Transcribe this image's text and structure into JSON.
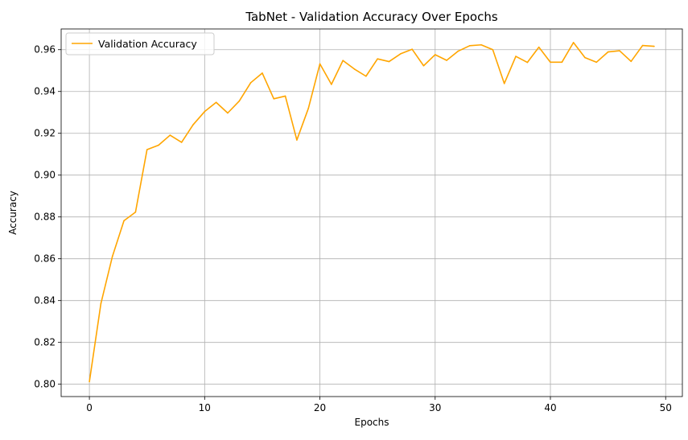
{
  "chart_data": {
    "type": "line",
    "title": "TabNet - Validation Accuracy Over Epochs",
    "xlabel": "Epochs",
    "ylabel": "Accuracy",
    "xlim": [
      -2.45,
      51.45
    ],
    "ylim": [
      0.7941,
      0.9699
    ],
    "xticks": [
      0,
      10,
      20,
      30,
      40,
      50
    ],
    "yticks": [
      0.8,
      0.82,
      0.84,
      0.86,
      0.88,
      0.9,
      0.92,
      0.94,
      0.96
    ],
    "ytick_labels": [
      "0.80",
      "0.82",
      "0.84",
      "0.86",
      "0.88",
      "0.90",
      "0.92",
      "0.94",
      "0.96"
    ],
    "grid": true,
    "legend": {
      "position": "upper-left"
    },
    "series": [
      {
        "name": "Validation Accuracy",
        "color": "#ffa500",
        "x": [
          0,
          1,
          2,
          3,
          4,
          5,
          6,
          7,
          8,
          9,
          10,
          11,
          12,
          13,
          14,
          15,
          16,
          17,
          18,
          19,
          20,
          21,
          22,
          23,
          24,
          25,
          26,
          27,
          28,
          29,
          30,
          31,
          32,
          33,
          34,
          35,
          36,
          37,
          38,
          39,
          40,
          41,
          42,
          43,
          44,
          45,
          46,
          47,
          48,
          49
        ],
        "y": [
          0.8012,
          0.8386,
          0.8612,
          0.8782,
          0.8823,
          0.9122,
          0.9143,
          0.9191,
          0.9157,
          0.9241,
          0.9304,
          0.9348,
          0.9297,
          0.9354,
          0.9442,
          0.9488,
          0.9365,
          0.9378,
          0.9168,
          0.9319,
          0.9532,
          0.9434,
          0.9548,
          0.9507,
          0.9473,
          0.9556,
          0.9543,
          0.958,
          0.9602,
          0.9523,
          0.9576,
          0.9549,
          0.9593,
          0.9619,
          0.9623,
          0.96,
          0.9438,
          0.9568,
          0.9539,
          0.9612,
          0.954,
          0.954,
          0.9634,
          0.9562,
          0.954,
          0.9589,
          0.9595,
          0.9544,
          0.962,
          0.9616
        ]
      }
    ]
  }
}
